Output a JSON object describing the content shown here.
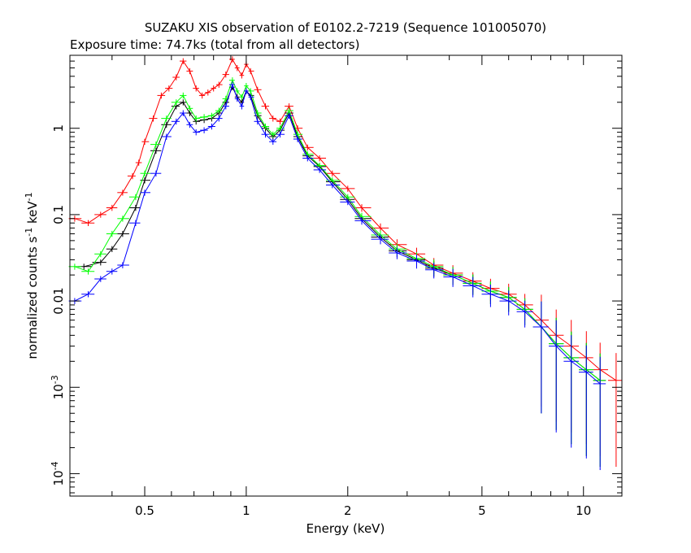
{
  "chart_data": {
    "type": "scatter",
    "title": "SUZAKU XIS observation of E0102.2-7219 (Sequence 101005070)",
    "subtitle": "Exposure time: 74.7ks (total from all detectors)",
    "xlabel": "Energy (keV)",
    "ylabel_main": "normalized counts s",
    "ylabel_exp1": "-1",
    "ylabel_mid": " keV",
    "ylabel_exp2": "-1",
    "x_scale": "log",
    "y_scale": "log",
    "xlim": [
      0.3,
      13
    ],
    "ylim": [
      5.5e-05,
      7
    ],
    "x_ticks": [
      {
        "value": 0.5,
        "label": "0.5"
      },
      {
        "value": 1,
        "label": "1"
      },
      {
        "value": 2,
        "label": "2"
      },
      {
        "value": 5,
        "label": "5"
      },
      {
        "value": 10,
        "label": "10"
      }
    ],
    "y_ticks": [
      {
        "value": 1,
        "label": "1"
      },
      {
        "value": 0.1,
        "label": "0.1"
      },
      {
        "value": 0.01,
        "label": "0.01"
      },
      {
        "value": 0.001,
        "label": "10",
        "exp": "-3"
      },
      {
        "value": 0.0001,
        "label": "10",
        "exp": "-4"
      }
    ],
    "grid": false,
    "legend": "none",
    "series": [
      {
        "color": "#ff0000",
        "points": [
          [
            0.31,
            0.09
          ],
          [
            0.34,
            0.08
          ],
          [
            0.37,
            0.1
          ],
          [
            0.4,
            0.12
          ],
          [
            0.43,
            0.18
          ],
          [
            0.46,
            0.28
          ],
          [
            0.48,
            0.4
          ],
          [
            0.5,
            0.7
          ],
          [
            0.53,
            1.3
          ],
          [
            0.56,
            2.4
          ],
          [
            0.59,
            2.9
          ],
          [
            0.62,
            3.9
          ],
          [
            0.65,
            6.0
          ],
          [
            0.68,
            4.6
          ],
          [
            0.71,
            2.9
          ],
          [
            0.74,
            2.4
          ],
          [
            0.77,
            2.6
          ],
          [
            0.8,
            2.9
          ],
          [
            0.83,
            3.2
          ],
          [
            0.87,
            4.2
          ],
          [
            0.91,
            6.3
          ],
          [
            0.94,
            5.0
          ],
          [
            0.97,
            4.1
          ],
          [
            1.0,
            5.5
          ],
          [
            1.03,
            4.6
          ],
          [
            1.08,
            2.8
          ],
          [
            1.14,
            1.8
          ],
          [
            1.2,
            1.3
          ],
          [
            1.26,
            1.2
          ],
          [
            1.34,
            1.8
          ],
          [
            1.42,
            1.0
          ],
          [
            1.52,
            0.6
          ],
          [
            1.65,
            0.45
          ],
          [
            1.8,
            0.3
          ],
          [
            2.0,
            0.2
          ],
          [
            2.2,
            0.12
          ],
          [
            2.5,
            0.07
          ],
          [
            2.8,
            0.045
          ],
          [
            3.2,
            0.035
          ],
          [
            3.6,
            0.026
          ],
          [
            4.1,
            0.021
          ],
          [
            4.7,
            0.017
          ],
          [
            5.3,
            0.014
          ],
          [
            6.0,
            0.012
          ],
          [
            6.7,
            0.009
          ],
          [
            7.5,
            0.006
          ],
          [
            8.3,
            0.004
          ],
          [
            9.2,
            0.003
          ],
          [
            10.2,
            0.0022
          ],
          [
            11.2,
            0.0016
          ],
          [
            12.5,
            0.0012
          ]
        ]
      },
      {
        "color": "#000000",
        "points": [
          [
            0.33,
            0.025
          ],
          [
            0.37,
            0.028
          ],
          [
            0.4,
            0.04
          ],
          [
            0.43,
            0.06
          ],
          [
            0.47,
            0.12
          ],
          [
            0.5,
            0.25
          ],
          [
            0.54,
            0.55
          ],
          [
            0.58,
            1.1
          ],
          [
            0.62,
            1.8
          ],
          [
            0.65,
            2.0
          ],
          [
            0.68,
            1.5
          ],
          [
            0.71,
            1.2
          ],
          [
            0.75,
            1.25
          ],
          [
            0.79,
            1.3
          ],
          [
            0.83,
            1.5
          ],
          [
            0.87,
            2.0
          ],
          [
            0.91,
            3.0
          ],
          [
            0.94,
            2.3
          ],
          [
            0.97,
            2.0
          ],
          [
            1.0,
            2.7
          ],
          [
            1.03,
            2.4
          ],
          [
            1.08,
            1.4
          ],
          [
            1.14,
            1.0
          ],
          [
            1.2,
            0.8
          ],
          [
            1.26,
            0.95
          ],
          [
            1.34,
            1.5
          ],
          [
            1.42,
            0.8
          ],
          [
            1.52,
            0.48
          ],
          [
            1.65,
            0.36
          ],
          [
            1.8,
            0.24
          ],
          [
            2.0,
            0.15
          ],
          [
            2.2,
            0.09
          ],
          [
            2.5,
            0.055
          ],
          [
            2.8,
            0.038
          ],
          [
            3.2,
            0.03
          ],
          [
            3.6,
            0.024
          ],
          [
            4.1,
            0.02
          ],
          [
            4.7,
            0.016
          ],
          [
            5.3,
            0.013
          ],
          [
            6.0,
            0.011
          ],
          [
            6.7,
            0.008
          ],
          [
            7.5,
            0.005
          ],
          [
            8.3,
            0.0032
          ],
          [
            9.2,
            0.0022
          ],
          [
            10.2,
            0.0016
          ],
          [
            11.2,
            0.0012
          ]
        ]
      },
      {
        "color": "#00ff00",
        "points": [
          [
            0.31,
            0.025
          ],
          [
            0.34,
            0.022
          ],
          [
            0.37,
            0.035
          ],
          [
            0.4,
            0.06
          ],
          [
            0.43,
            0.09
          ],
          [
            0.47,
            0.16
          ],
          [
            0.5,
            0.3
          ],
          [
            0.54,
            0.65
          ],
          [
            0.58,
            1.3
          ],
          [
            0.62,
            2.0
          ],
          [
            0.65,
            2.4
          ],
          [
            0.68,
            1.7
          ],
          [
            0.71,
            1.3
          ],
          [
            0.75,
            1.35
          ],
          [
            0.79,
            1.4
          ],
          [
            0.83,
            1.6
          ],
          [
            0.87,
            2.2
          ],
          [
            0.91,
            3.6
          ],
          [
            0.94,
            2.7
          ],
          [
            0.97,
            2.3
          ],
          [
            1.0,
            3.1
          ],
          [
            1.03,
            2.7
          ],
          [
            1.08,
            1.5
          ],
          [
            1.14,
            1.05
          ],
          [
            1.2,
            0.85
          ],
          [
            1.26,
            1.0
          ],
          [
            1.34,
            1.6
          ],
          [
            1.42,
            0.85
          ],
          [
            1.52,
            0.5
          ],
          [
            1.65,
            0.37
          ],
          [
            1.8,
            0.25
          ],
          [
            2.0,
            0.16
          ],
          [
            2.2,
            0.095
          ],
          [
            2.5,
            0.058
          ],
          [
            2.8,
            0.04
          ],
          [
            3.2,
            0.031
          ],
          [
            3.6,
            0.025
          ],
          [
            4.1,
            0.02
          ],
          [
            4.7,
            0.016
          ],
          [
            5.3,
            0.013
          ],
          [
            6.0,
            0.011
          ],
          [
            6.7,
            0.008
          ],
          [
            7.5,
            0.005
          ],
          [
            8.3,
            0.0032
          ],
          [
            9.2,
            0.0022
          ],
          [
            10.2,
            0.0016
          ],
          [
            11.2,
            0.0012
          ]
        ]
      },
      {
        "color": "#0000ff",
        "points": [
          [
            0.31,
            0.01
          ],
          [
            0.34,
            0.012
          ],
          [
            0.37,
            0.018
          ],
          [
            0.4,
            0.022
          ],
          [
            0.43,
            0.026
          ],
          [
            0.47,
            0.08
          ],
          [
            0.5,
            0.18
          ],
          [
            0.54,
            0.3
          ],
          [
            0.58,
            0.8
          ],
          [
            0.62,
            1.2
          ],
          [
            0.65,
            1.5
          ],
          [
            0.68,
            1.1
          ],
          [
            0.71,
            0.9
          ],
          [
            0.75,
            0.95
          ],
          [
            0.79,
            1.05
          ],
          [
            0.83,
            1.3
          ],
          [
            0.87,
            1.8
          ],
          [
            0.91,
            3.2
          ],
          [
            0.94,
            2.2
          ],
          [
            0.97,
            1.8
          ],
          [
            1.0,
            2.7
          ],
          [
            1.03,
            2.3
          ],
          [
            1.08,
            1.2
          ],
          [
            1.14,
            0.85
          ],
          [
            1.2,
            0.7
          ],
          [
            1.26,
            0.85
          ],
          [
            1.34,
            1.4
          ],
          [
            1.42,
            0.75
          ],
          [
            1.52,
            0.45
          ],
          [
            1.65,
            0.33
          ],
          [
            1.8,
            0.22
          ],
          [
            2.0,
            0.14
          ],
          [
            2.2,
            0.085
          ],
          [
            2.5,
            0.052
          ],
          [
            2.8,
            0.036
          ],
          [
            3.2,
            0.029
          ],
          [
            3.6,
            0.023
          ],
          [
            4.1,
            0.019
          ],
          [
            4.7,
            0.015
          ],
          [
            5.3,
            0.012
          ],
          [
            6.0,
            0.01
          ],
          [
            6.7,
            0.0075
          ],
          [
            7.5,
            0.005
          ],
          [
            8.3,
            0.003
          ],
          [
            9.2,
            0.002
          ],
          [
            10.2,
            0.0015
          ],
          [
            11.2,
            0.0011
          ]
        ]
      }
    ]
  }
}
